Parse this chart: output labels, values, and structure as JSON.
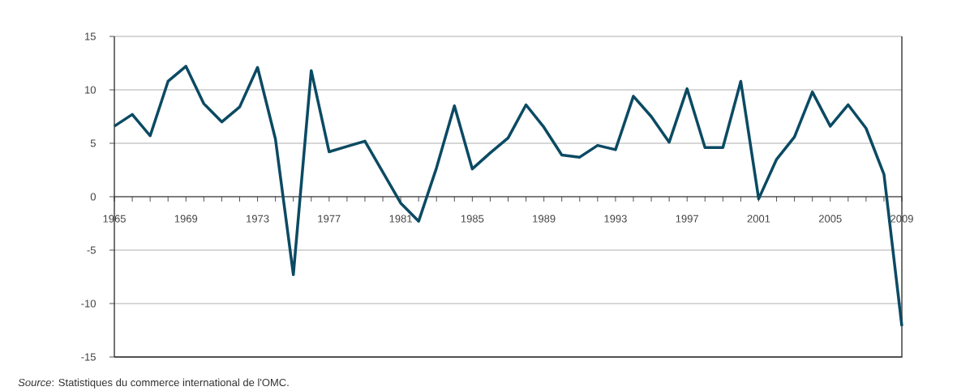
{
  "chart_data": {
    "type": "line",
    "x": [
      1965,
      1966,
      1967,
      1968,
      1969,
      1970,
      1971,
      1972,
      1973,
      1974,
      1975,
      1976,
      1977,
      1978,
      1979,
      1980,
      1981,
      1982,
      1983,
      1984,
      1985,
      1986,
      1987,
      1988,
      1989,
      1990,
      1991,
      1992,
      1993,
      1994,
      1995,
      1996,
      1997,
      1998,
      1999,
      2000,
      2001,
      2002,
      2003,
      2004,
      2005,
      2006,
      2007,
      2008,
      2009
    ],
    "values": [
      6.6,
      7.7,
      5.7,
      10.8,
      12.2,
      8.7,
      7.0,
      8.4,
      12.1,
      5.4,
      -7.3,
      11.8,
      4.2,
      4.7,
      5.2,
      2.3,
      -0.6,
      -2.3,
      2.7,
      8.5,
      2.6,
      4.1,
      5.5,
      8.6,
      6.5,
      3.9,
      3.7,
      4.8,
      4.4,
      9.4,
      7.5,
      5.1,
      10.1,
      4.6,
      4.6,
      10.8,
      -0.2,
      3.5,
      5.6,
      9.8,
      6.6,
      8.6,
      6.4,
      2.1,
      -12.1
    ],
    "color": "#0b4a63",
    "xlim": [
      1965,
      2009
    ],
    "xticks": [
      1965,
      {
        "value": 1966,
        "label": null
      },
      {
        "value": 1967,
        "label": null
      },
      {
        "value": 1968,
        "label": null
      },
      1969,
      {
        "value": 1970,
        "label": null
      },
      {
        "value": 1971,
        "label": null
      },
      {
        "value": 1972,
        "label": null
      },
      1973,
      {
        "value": 1974,
        "label": null
      },
      {
        "value": 1975,
        "label": null
      },
      {
        "value": 1976,
        "label": null
      },
      1977,
      {
        "value": 1978,
        "label": null
      },
      {
        "value": 1979,
        "label": null
      },
      {
        "value": 1980,
        "label": null
      },
      1981,
      {
        "value": 1982,
        "label": null
      },
      {
        "value": 1983,
        "label": null
      },
      {
        "value": 1984,
        "label": null
      },
      1985,
      {
        "value": 1986,
        "label": null
      },
      {
        "value": 1987,
        "label": null
      },
      {
        "value": 1988,
        "label": null
      },
      1989,
      {
        "value": 1990,
        "label": null
      },
      {
        "value": 1991,
        "label": null
      },
      {
        "value": 1992,
        "label": null
      },
      1993,
      {
        "value": 1994,
        "label": null
      },
      {
        "value": 1995,
        "label": null
      },
      {
        "value": 1996,
        "label": null
      },
      1997,
      {
        "value": 1998,
        "label": null
      },
      {
        "value": 1999,
        "label": null
      },
      {
        "value": 2000,
        "label": null
      },
      2001,
      {
        "value": 2002,
        "label": null
      },
      {
        "value": 2003,
        "label": null
      },
      {
        "value": 2004,
        "label": null
      },
      2005,
      {
        "value": 2006,
        "label": null
      },
      {
        "value": 2007,
        "label": null
      },
      {
        "value": 2008,
        "label": null
      },
      2009
    ],
    "ylim": [
      -15,
      15
    ],
    "yticks": [
      -15,
      -10,
      -5,
      0,
      5,
      10,
      15
    ],
    "grid": "y",
    "annotations": [
      "*Source*: Statistiques du commerce international de l'OMC."
    ]
  }
}
